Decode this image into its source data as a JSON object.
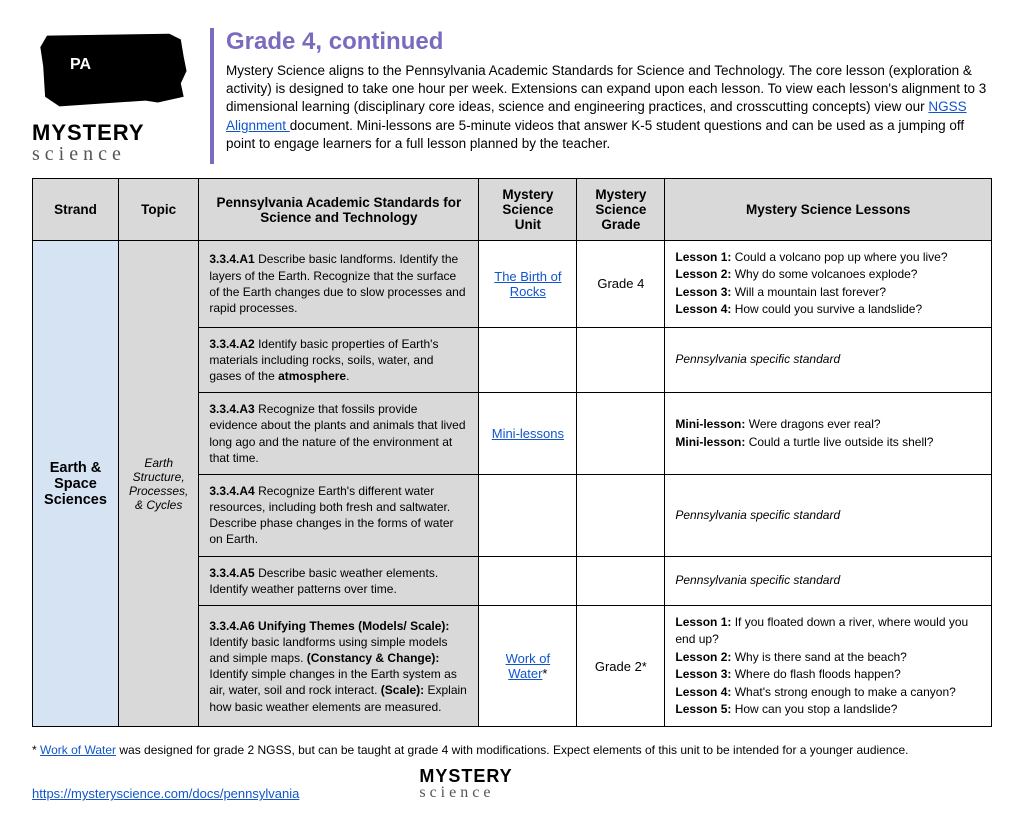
{
  "header": {
    "state_abbr": "PA",
    "title": "Grade 4, continued",
    "intro_before_link": "Mystery Science aligns to the Pennsylvania Academic Standards for Science and Technology. The core lesson (exploration & activity) is designed to take one hour per week. Extensions can expand upon each lesson. To view each lesson's alignment to 3 dimensional learning (disciplinary core ideas, science and engineering practices, and crosscutting concepts) view our ",
    "link_text": "NGSS Alignment ",
    "intro_after_link": "document. Mini-lessons are 5-minute videos that answer K-5 student questions and can be used as a jumping off point to engage learners for a full lesson planned by the teacher."
  },
  "logo": {
    "line1": "MYSTERY",
    "line2": "science"
  },
  "columns": [
    "Strand",
    "Topic",
    "Pennsylvania Academic Standards for Science and Technology",
    "Mystery Science Unit",
    "Mystery Science Grade",
    "Mystery Science Lessons"
  ],
  "strand": "Earth & Space Sciences",
  "topic": "Earth Structure, Processes, & Cycles",
  "rows": [
    {
      "std_code": "3.3.4.A1",
      "std_text": " Describe basic landforms. Identify the layers of the Earth. Recognize that the surface of the Earth changes due to slow processes and rapid processes.",
      "unit_link": "The Birth of Rocks",
      "grade": "Grade 4",
      "lessons": [
        {
          "b": "Lesson 1:",
          "t": " Could a volcano pop up where you live?"
        },
        {
          "b": "Lesson 2:",
          "t": " Why do some volcanoes explode?"
        },
        {
          "b": "Lesson 3:",
          "t": " Will a mountain last forever?"
        },
        {
          "b": "Lesson 4:",
          "t": " How could you survive a landslide?"
        }
      ]
    },
    {
      "std_code": "3.3.4.A2",
      "std_text_before": " Identify basic properties of Earth's materials including rocks, soils, water, and gases of the ",
      "std_bold_end": "atmosphere",
      "std_text_after": ".",
      "note": "Pennsylvania specific standard"
    },
    {
      "std_code": "3.3.4.A3",
      "std_text": " Recognize that fossils provide evidence about the plants and animals that lived long ago and the nature of the environment at that time.",
      "unit_link": "Mini-lessons",
      "lessons": [
        {
          "b": "Mini-lesson:",
          "t": " Were dragons ever real?"
        },
        {
          "b": "Mini-lesson:",
          "t": " Could a turtle live outside its shell?"
        }
      ]
    },
    {
      "std_code": "3.3.4.A4",
      "std_text": " Recognize Earth's different water resources, including both fresh and saltwater. Describe phase changes in the forms of water on Earth.",
      "note": "Pennsylvania specific standard"
    },
    {
      "std_code": "3.3.4.A5",
      "std_text": " Describe basic weather elements. Identify weather patterns over time.",
      "note": "Pennsylvania specific standard"
    },
    {
      "std_code": "3.3.4.A6 Unifying Themes (Models/ Scale):",
      "std_text_parts": [
        {
          "plain": " Identify basic landforms using simple models and simple maps. "
        },
        {
          "bold": "(Constancy & Change):"
        },
        {
          "plain": " Identify simple changes in the Earth system as air, water, soil and rock interact. "
        },
        {
          "bold": "(Scale):"
        },
        {
          "plain": " Explain how basic weather elements are measured."
        }
      ],
      "unit_link": "Work of Water",
      "unit_suffix": "*",
      "grade": "Grade 2*",
      "lessons": [
        {
          "b": "Lesson 1:",
          "t": " If you floated down a river, where would you end up?"
        },
        {
          "b": "Lesson 2:",
          "t": " Why is there sand at the beach?"
        },
        {
          "b": "Lesson 3:",
          "t": " Where do flash floods happen?"
        },
        {
          "b": "Lesson 4:",
          "t": " What's strong enough to make a canyon?"
        },
        {
          "b": "Lesson 5:",
          "t": " How can you stop a landslide?"
        }
      ]
    }
  ],
  "footnote": {
    "prefix": "* ",
    "link": "Work of Water",
    "suffix": " was designed for grade 2 NGSS, but can be taught at grade 4 with modifications. Expect elements of this unit to be intended for a younger audience."
  },
  "footer_url": "https://mysteryscience.com/docs/pennsylvania"
}
